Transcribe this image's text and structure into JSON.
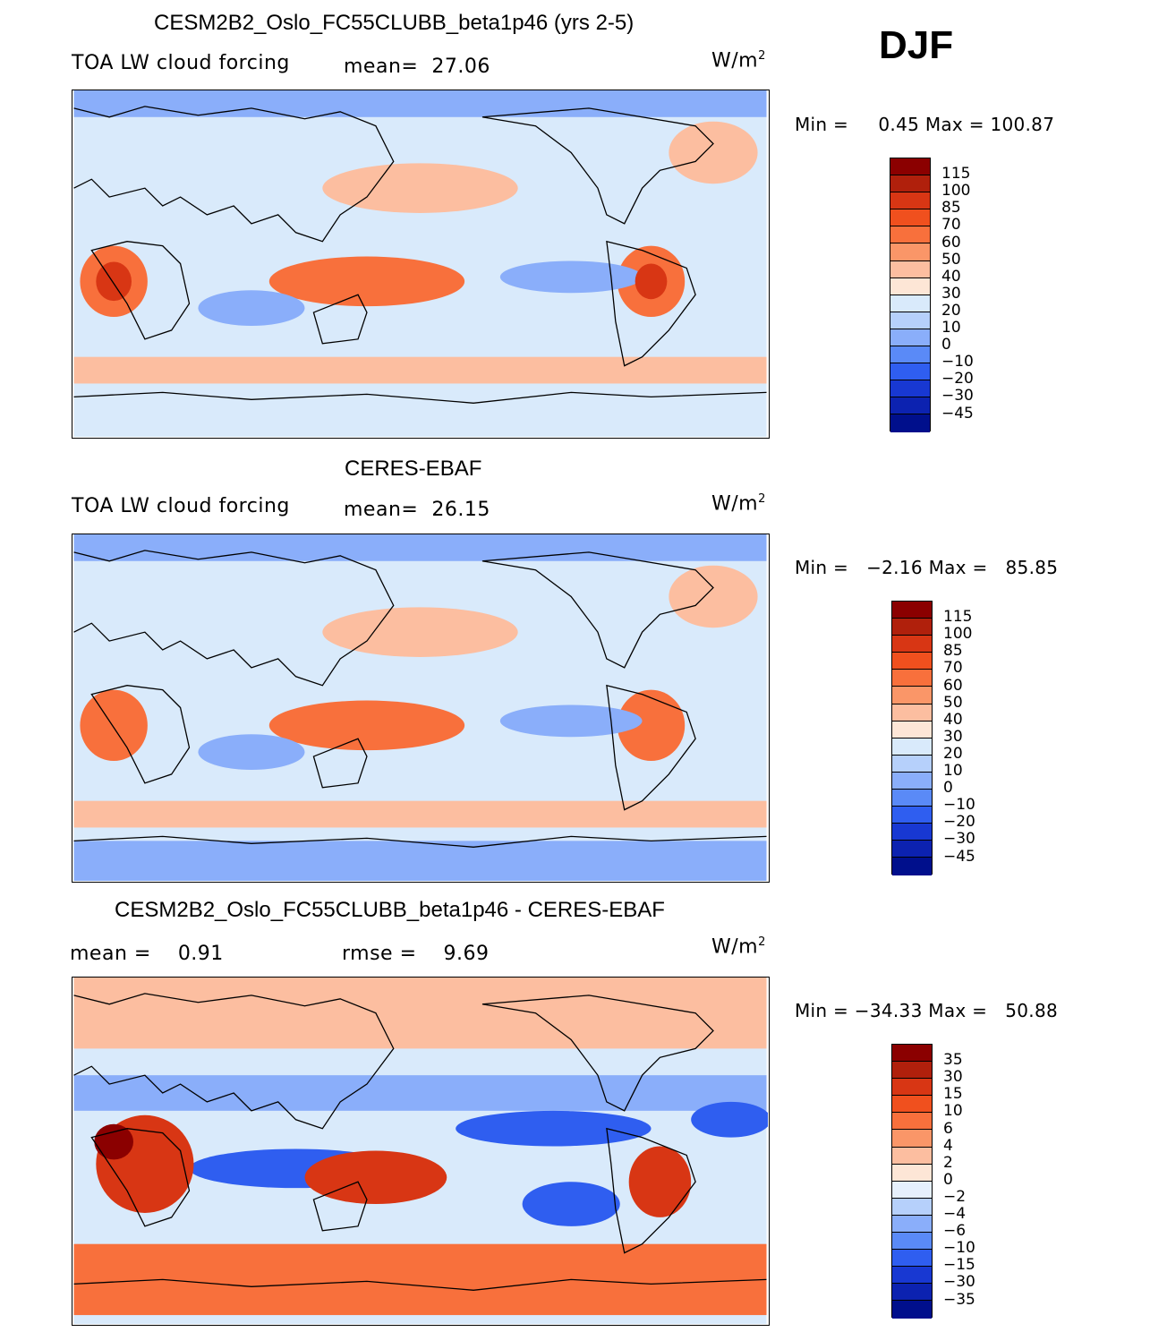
{
  "season": "DJF",
  "units_base": "W/m",
  "units_exp": "2",
  "panels": [
    {
      "title": "CESM2B2_Oslo_FC55CLUBB_beta1p46 (yrs 2-5)",
      "left_label": "TOA LW cloud forcing",
      "mid_label": "mean=",
      "mid_value": "27.06",
      "min_label": "Min =",
      "min_value": "0.45",
      "max_label": "Max =",
      "max_value": "100.87",
      "levels": [
        "115",
        "100",
        "85",
        "70",
        "60",
        "50",
        "40",
        "30",
        "20",
        "10",
        "0",
        "−10",
        "−20",
        "−30",
        "−45"
      ],
      "colors": [
        "#8b0000",
        "#b0200c",
        "#d83614",
        "#f0501e",
        "#f8703c",
        "#fa9668",
        "#fcbea0",
        "#fde6d6",
        "#d9eafb",
        "#b6d0fb",
        "#8aaefa",
        "#5a8af7",
        "#2f5ef0",
        "#1838d2",
        "#0c22b0",
        "#000f8c"
      ]
    },
    {
      "title": "CERES-EBAF",
      "left_label": "TOA LW cloud forcing",
      "mid_label": "mean=",
      "mid_value": "26.15",
      "min_label": "Min =",
      "min_value": "−2.16",
      "max_label": "Max =",
      "max_value": "85.85",
      "levels": [
        "115",
        "100",
        "85",
        "70",
        "60",
        "50",
        "40",
        "30",
        "20",
        "10",
        "0",
        "−10",
        "−20",
        "−30",
        "−45"
      ],
      "colors": [
        "#8b0000",
        "#b0200c",
        "#d83614",
        "#f0501e",
        "#f8703c",
        "#fa9668",
        "#fcbea0",
        "#fde6d6",
        "#d9eafb",
        "#b6d0fb",
        "#8aaefa",
        "#5a8af7",
        "#2f5ef0",
        "#1838d2",
        "#0c22b0",
        "#000f8c"
      ]
    },
    {
      "title": "CESM2B2_Oslo_FC55CLUBB_beta1p46 - CERES-EBAF",
      "left_label": "mean =",
      "left_value": "0.91",
      "mid_label": "rmse =",
      "mid_value": "9.69",
      "min_label": "Min =",
      "min_value": "−34.33",
      "max_label": "Max =",
      "max_value": "50.88",
      "levels": [
        "35",
        "30",
        "15",
        "10",
        "6",
        "4",
        "2",
        "0",
        "−2",
        "−4",
        "−6",
        "−10",
        "−15",
        "−30",
        "−35"
      ],
      "colors": [
        "#8b0000",
        "#b0200c",
        "#d83614",
        "#f0501e",
        "#f8703c",
        "#fa9668",
        "#fcbea0",
        "#fde6d6",
        "#e6f0fc",
        "#b6d0fb",
        "#8aaefa",
        "#5a8af7",
        "#2f5ef0",
        "#1838d2",
        "#0c22b0",
        "#000f8c"
      ]
    }
  ],
  "palette": {
    "ocean_light": "#d9eafb",
    "blue_mid": "#8aaefa",
    "blue_deep": "#2f5ef0",
    "red_soft": "#fcbea0",
    "red_mid": "#f8703c",
    "red_deep": "#d83614",
    "red_dark": "#8b0000",
    "coast": "#000000"
  }
}
